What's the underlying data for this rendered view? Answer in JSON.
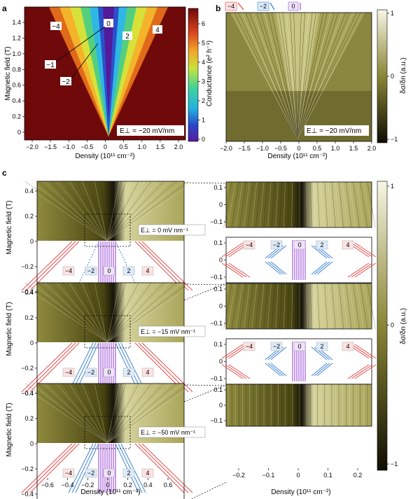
{
  "panel_a": {
    "letter": "a",
    "ylabel": "Magnetic field (T)",
    "xlabel": "Density (10¹¹ cm⁻²)",
    "cbar_label": "Conductance (e² h⁻¹)",
    "condition": "E⊥ = −20 mV/nm",
    "fan_labels": [
      "−4",
      "0",
      "2",
      "4",
      "−1",
      "−2"
    ],
    "x_ticks": [
      "−2.0",
      "−1.5",
      "−1.0",
      "−0.5",
      "0",
      "0.5",
      "1.0",
      "1.5",
      "2.0"
    ],
    "y_ticks": [
      "0",
      "0.2",
      "0.4",
      "0.6",
      "0.8",
      "1.0",
      "1.2",
      "1.4"
    ],
    "cbar_ticks": [
      "0",
      "1",
      "2",
      "3",
      "4",
      "5",
      "6"
    ]
  },
  "panel_b": {
    "letter": "b",
    "xlabel": "Density (10¹¹ cm⁻²)",
    "cbar_label": "δσ/δn (a.u.)",
    "condition": "E⊥ = −20 mV/nm",
    "top_markers": [
      "−4",
      "−2",
      "0"
    ],
    "x_ticks": [
      "−2.0",
      "−1.5",
      "−1.0",
      "−0.5",
      "0",
      "0.5",
      "1.0",
      "1.5",
      "2.0"
    ],
    "cbar_ticks": [
      "1",
      "0",
      "−1"
    ]
  },
  "panel_c": {
    "letter": "c",
    "ylabel": "Magnetic field (T)",
    "xlabel_left": "Density (10¹¹ cm⁻²)",
    "xlabel_right": "Density (10¹¹ cm⁻²)",
    "cbar_label": "δσ/δn (a.u.)",
    "cbar_ticks": [
      "1",
      "0",
      "−1"
    ],
    "rows": [
      {
        "condition": "E⊥ = 0 mV nm⁻¹",
        "labels": [
          "−4",
          "−2",
          "0",
          "2",
          "4"
        ]
      },
      {
        "condition": "E⊥ = −15 mV nm⁻¹",
        "labels": [
          "−4",
          "−2",
          "0",
          "2",
          "4"
        ]
      },
      {
        "condition": "E⊥ = −50 mV nm⁻¹",
        "labels": [
          "−4",
          "−2",
          "0",
          "2",
          "4"
        ]
      }
    ],
    "zoom_labels": [
      "−4",
      "−2",
      "0",
      "2",
      "4"
    ],
    "left_y_ticks": [
      "0.4",
      "0.2",
      "0",
      "−0.2",
      "−0.4"
    ],
    "right_y_ticks": [
      "0.1",
      "0",
      "−0.1"
    ],
    "left_x_ticks": [
      "−0.6",
      "−0.4",
      "−0.2",
      "0",
      "0.2",
      "0.4",
      "0.6"
    ],
    "right_x_ticks": [
      "−0.2",
      "−0.1",
      "0",
      "0.1",
      "0.2"
    ]
  },
  "colors": {
    "olive_dark": "#1c1a04",
    "olive_mid": "#8a8535",
    "olive_light": "#f4f2d8",
    "fan_red": "#e64b4b",
    "fan_blue": "#3f86d6",
    "fan_purple": "#a25ad9",
    "cond_high": "#7a0b0b"
  }
}
